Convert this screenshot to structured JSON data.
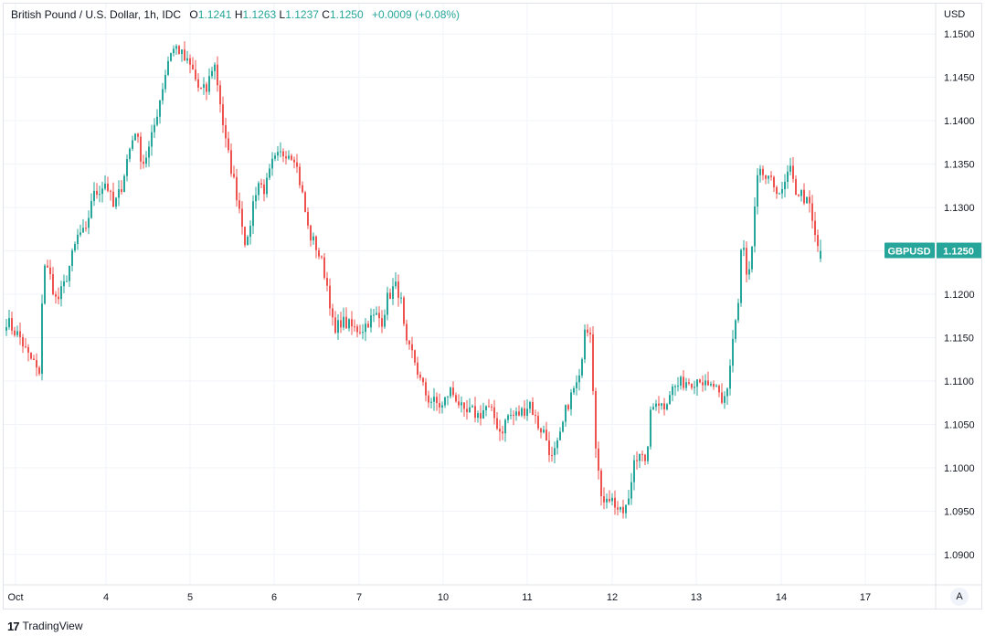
{
  "legend": {
    "symbol": "British Pound / U.S. Dollar, 1h, IDC",
    "o_label": "O",
    "o": "1.1241",
    "h_label": "H",
    "h": "1.1263",
    "l_label": "L",
    "l": "1.1237",
    "c_label": "C",
    "c": "1.1250",
    "change": "+0.0009 (+0.08%)"
  },
  "price_axis": {
    "currency": "USD",
    "last_tag_symbol": "GBPUSD",
    "last_tag_price": "1.1250"
  },
  "auto_button": "A",
  "footer": {
    "brand": "TradingView",
    "logo_glyph": "17"
  },
  "colors": {
    "up": "#26a69a",
    "down": "#ef5350",
    "grid": "#f0f3fa",
    "text": "#131722"
  },
  "chart_data": {
    "type": "candlestick",
    "ylim": [
      1.0865,
      1.1535
    ],
    "yticks": [
      "1.0900",
      "1.0950",
      "1.1000",
      "1.1050",
      "1.1100",
      "1.1150",
      "1.1200",
      "1.1250",
      "1.1300",
      "1.1350",
      "1.1400",
      "1.1450",
      "1.1500"
    ],
    "xlim": [
      0,
      1024
    ],
    "xticks": [
      {
        "label": "Oct",
        "x": 17
      },
      {
        "label": "4",
        "x": 116
      },
      {
        "label": "5",
        "x": 208
      },
      {
        "label": "6",
        "x": 300
      },
      {
        "label": "7",
        "x": 393
      },
      {
        "label": "10",
        "x": 485
      },
      {
        "label": "11",
        "x": 577
      },
      {
        "label": "12",
        "x": 670
      },
      {
        "label": "13",
        "x": 762
      },
      {
        "label": "14",
        "x": 855
      },
      {
        "label": "17",
        "x": 947
      }
    ],
    "anchors": [
      [
        7,
        1.117
      ],
      [
        14,
        1.116
      ],
      [
        22,
        1.115
      ],
      [
        30,
        1.113
      ],
      [
        38,
        1.112
      ],
      [
        44,
        1.11
      ],
      [
        47,
        1.124
      ],
      [
        55,
        1.122
      ],
      [
        62,
        1.119
      ],
      [
        70,
        1.121
      ],
      [
        78,
        1.124
      ],
      [
        86,
        1.127
      ],
      [
        94,
        1.127
      ],
      [
        100,
        1.131
      ],
      [
        108,
        1.132
      ],
      [
        116,
        1.133
      ],
      [
        124,
        1.13
      ],
      [
        132,
        1.132
      ],
      [
        140,
        1.136
      ],
      [
        148,
        1.139
      ],
      [
        156,
        1.135
      ],
      [
        164,
        1.137
      ],
      [
        172,
        1.141
      ],
      [
        180,
        1.145
      ],
      [
        186,
        1.148
      ],
      [
        194,
        1.1485
      ],
      [
        202,
        1.147
      ],
      [
        210,
        1.146
      ],
      [
        218,
        1.1435
      ],
      [
        226,
        1.1435
      ],
      [
        234,
        1.147
      ],
      [
        240,
        1.143
      ],
      [
        246,
        1.138
      ],
      [
        252,
        1.135
      ],
      [
        258,
        1.132
      ],
      [
        264,
        1.129
      ],
      [
        270,
        1.125
      ],
      [
        276,
        1.13
      ],
      [
        282,
        1.133
      ],
      [
        290,
        1.132
      ],
      [
        298,
        1.135
      ],
      [
        306,
        1.136
      ],
      [
        314,
        1.1365
      ],
      [
        322,
        1.136
      ],
      [
        330,
        1.132
      ],
      [
        338,
        1.127
      ],
      [
        346,
        1.1255
      ],
      [
        354,
        1.123
      ],
      [
        360,
        1.12
      ],
      [
        366,
        1.115
      ],
      [
        372,
        1.117
      ],
      [
        380,
        1.1165
      ],
      [
        388,
        1.116
      ],
      [
        396,
        1.116
      ],
      [
        404,
        1.117
      ],
      [
        412,
        1.1175
      ],
      [
        418,
        1.117
      ],
      [
        424,
        1.1195
      ],
      [
        432,
        1.121
      ],
      [
        438,
        1.12
      ],
      [
        444,
        1.114
      ],
      [
        452,
        1.113
      ],
      [
        460,
        1.11
      ],
      [
        468,
        1.108
      ],
      [
        476,
        1.1075
      ],
      [
        484,
        1.107
      ],
      [
        492,
        1.109
      ],
      [
        500,
        1.108
      ],
      [
        508,
        1.106
      ],
      [
        516,
        1.1065
      ],
      [
        524,
        1.106
      ],
      [
        532,
        1.107
      ],
      [
        540,
        1.106
      ],
      [
        548,
        1.104
      ],
      [
        556,
        1.106
      ],
      [
        564,
        1.106
      ],
      [
        572,
        1.1065
      ],
      [
        580,
        1.1075
      ],
      [
        588,
        1.105
      ],
      [
        596,
        1.104
      ],
      [
        604,
        1.101
      ],
      [
        612,
        1.103
      ],
      [
        620,
        1.107
      ],
      [
        628,
        1.109
      ],
      [
        634,
        1.11
      ],
      [
        640,
        1.1165
      ],
      [
        646,
        1.116
      ],
      [
        652,
        1.103
      ],
      [
        658,
        1.096
      ],
      [
        664,
        1.097
      ],
      [
        672,
        1.096
      ],
      [
        680,
        1.0945
      ],
      [
        688,
        1.096
      ],
      [
        694,
        1.101
      ],
      [
        700,
        1.102
      ],
      [
        706,
        1.1
      ],
      [
        712,
        1.106
      ],
      [
        718,
        1.108
      ],
      [
        726,
        1.107
      ],
      [
        734,
        1.109
      ],
      [
        742,
        1.1095
      ],
      [
        750,
        1.11
      ],
      [
        758,
        1.11
      ],
      [
        766,
        1.1105
      ],
      [
        774,
        1.109
      ],
      [
        782,
        1.1095
      ],
      [
        790,
        1.107
      ],
      [
        796,
        1.109
      ],
      [
        802,
        1.115
      ],
      [
        808,
        1.119
      ],
      [
        812,
        1.127
      ],
      [
        818,
        1.121
      ],
      [
        824,
        1.126
      ],
      [
        828,
        1.133
      ],
      [
        834,
        1.134
      ],
      [
        840,
        1.133
      ],
      [
        848,
        1.1325
      ],
      [
        856,
        1.1315
      ],
      [
        864,
        1.1345
      ],
      [
        870,
        1.132
      ],
      [
        878,
        1.1315
      ],
      [
        886,
        1.13
      ],
      [
        892,
        1.1265
      ],
      [
        898,
        1.1245
      ]
    ],
    "last": {
      "open": 1.1241,
      "high": 1.1263,
      "low": 1.1237,
      "close": 1.125
    }
  }
}
